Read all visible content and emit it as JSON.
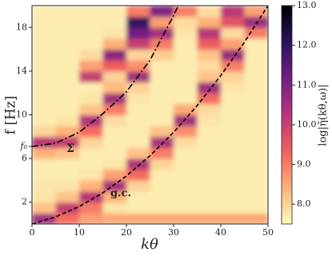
{
  "chart_data": {
    "type": "heatmap",
    "x_label": "kθ",
    "y_label": "f [Hz]",
    "colorbar_label": "log|η̃(kθ,ω)|",
    "annotations": [
      "Σ",
      "g.c."
    ],
    "xlim": [
      0,
      50
    ],
    "ylim": [
      0,
      20
    ],
    "xticks": [
      0,
      10,
      20,
      30,
      40,
      50
    ],
    "yticks": [
      2,
      6,
      {
        "value": 7.1,
        "label": "f₀"
      },
      10,
      14,
      18
    ],
    "clim": [
      7.5,
      13
    ],
    "cticks": [
      {
        "value": 8,
        "label": "8.0"
      },
      {
        "value": 9,
        "label": "9.0"
      },
      {
        "value": 10,
        "label": "10.0"
      },
      {
        "value": 11,
        "label": "11.0"
      },
      {
        "value": 12,
        "label": "12.0"
      },
      {
        "value": 13,
        "label": "13.0"
      }
    ],
    "colormap": [
      "#fcfdbf",
      "#feb078",
      "#f1605d",
      "#b5367a",
      "#721f81",
      "#2c115f",
      "#000004"
    ],
    "xbins": [
      0,
      5,
      10,
      15,
      20,
      25,
      30,
      35,
      40,
      45,
      50
    ],
    "ybins": [
      0,
      1,
      2,
      3,
      4,
      5,
      6,
      7,
      8,
      9,
      10,
      11,
      12,
      13,
      14,
      15,
      16,
      17,
      18,
      19,
      20
    ],
    "z": [
      [
        10.5,
        9.2,
        8.6,
        8.5,
        8.5,
        8.5,
        8.5,
        8.5,
        8.5,
        8.5
      ],
      [
        8.2,
        10.0,
        9.0,
        7.8,
        7.7,
        7.7,
        7.7,
        7.7,
        7.7,
        7.7
      ],
      [
        7.8,
        8.2,
        10.2,
        8.4,
        7.7,
        7.7,
        7.7,
        7.7,
        7.7,
        7.7
      ],
      [
        7.8,
        7.8,
        8.4,
        10.4,
        8.0,
        7.7,
        7.7,
        7.7,
        7.7,
        7.7
      ],
      [
        7.7,
        7.7,
        7.8,
        8.6,
        9.2,
        7.7,
        7.7,
        7.7,
        7.7,
        7.7
      ],
      [
        7.7,
        7.7,
        7.7,
        7.8,
        10.3,
        8.0,
        7.7,
        7.7,
        7.7,
        7.7
      ],
      [
        8.4,
        8.2,
        7.7,
        7.7,
        8.2,
        9.0,
        7.7,
        7.7,
        7.7,
        7.7
      ],
      [
        10.2,
        10.0,
        8.0,
        7.7,
        7.7,
        10.4,
        7.9,
        7.7,
        7.7,
        7.7
      ],
      [
        8.0,
        8.4,
        9.2,
        7.7,
        7.7,
        8.2,
        8.8,
        7.7,
        7.7,
        7.7
      ],
      [
        7.7,
        7.8,
        10.3,
        7.9,
        7.7,
        7.7,
        10.5,
        7.8,
        7.7,
        7.7
      ],
      [
        7.7,
        7.7,
        8.2,
        9.0,
        7.7,
        7.7,
        8.5,
        7.9,
        7.7,
        7.7
      ],
      [
        7.7,
        7.7,
        7.8,
        10.5,
        7.8,
        7.7,
        7.7,
        9.2,
        7.7,
        7.7
      ],
      [
        7.7,
        7.7,
        7.7,
        8.3,
        8.0,
        7.7,
        7.7,
        10.6,
        7.8,
        7.7
      ],
      [
        7.7,
        7.7,
        10.0,
        8.0,
        10.5,
        7.7,
        7.7,
        8.2,
        8.0,
        7.7
      ],
      [
        7.7,
        7.7,
        8.6,
        9.4,
        8.8,
        7.7,
        7.7,
        7.9,
        9.0,
        7.7
      ],
      [
        7.7,
        7.7,
        7.9,
        10.8,
        8.0,
        8.1,
        7.7,
        8.2,
        10.6,
        7.7
      ],
      [
        7.7,
        7.7,
        7.7,
        8.4,
        10.0,
        9.0,
        7.7,
        9.4,
        8.6,
        7.7
      ],
      [
        7.7,
        7.7,
        7.7,
        7.8,
        11.2,
        10.5,
        7.8,
        10.2,
        7.9,
        9.0
      ],
      [
        7.7,
        7.7,
        7.7,
        7.7,
        12.0,
        8.6,
        7.9,
        8.4,
        9.6,
        10.6
      ],
      [
        7.7,
        7.7,
        7.7,
        7.7,
        9.0,
        11.0,
        9.0,
        7.9,
        10.2,
        8.6
      ]
    ],
    "series": [
      {
        "color": "#000000",
        "dash": "dashdot",
        "x": [
          0,
          5,
          10,
          15,
          20,
          25,
          30,
          31
        ],
        "values": [
          7.1,
          7.4,
          8.4,
          10.1,
          12.1,
          15.0,
          19.1,
          20.0
        ]
      },
      {
        "color": "#000000",
        "dash": "dashed",
        "x": [
          0,
          5,
          10,
          15,
          20,
          25,
          30,
          35,
          40,
          45,
          50
        ],
        "values": [
          0,
          0.65,
          1.6,
          2.85,
          4.4,
          6.25,
          8.4,
          10.85,
          13.6,
          16.65,
          20.0
        ]
      }
    ]
  }
}
